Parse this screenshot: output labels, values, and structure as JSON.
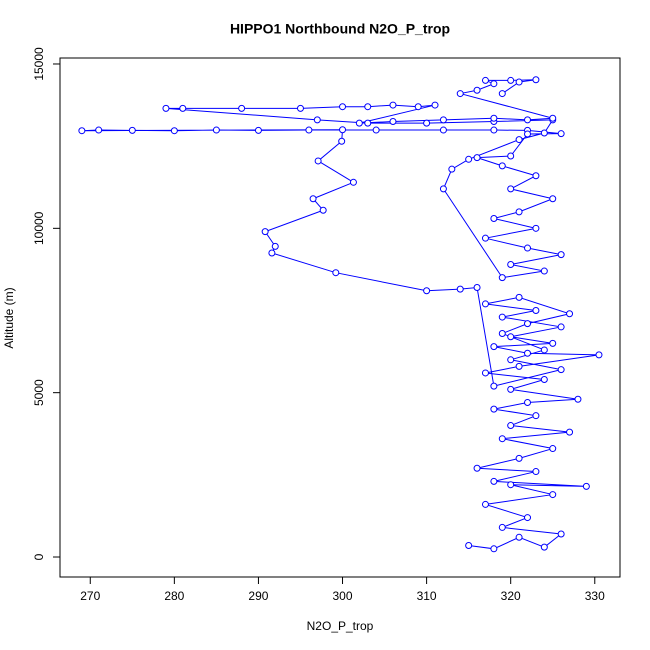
{
  "chart_data": {
    "type": "line",
    "title": "HIPPO1 Northbound N2O_P_trop",
    "x_label": "N2O_P_trop",
    "y_label": "Altitude (m)",
    "xlim": [
      266.4,
      333.0
    ],
    "ylim": [
      -608,
      15182
    ],
    "xticks": [
      270,
      280,
      290,
      300,
      310,
      320,
      330
    ],
    "yticks": [
      0,
      5000,
      10000,
      15000
    ],
    "color": "#0000ff",
    "markers": true,
    "x": [
      315,
      318,
      321,
      324,
      326,
      319,
      322,
      317,
      325,
      320,
      329,
      318,
      323,
      316,
      321,
      325,
      319,
      327,
      320,
      323,
      318,
      322,
      328,
      320,
      324,
      317,
      321,
      330.5,
      322,
      318,
      325,
      320,
      326,
      319,
      323,
      317,
      321,
      327,
      322,
      319,
      324,
      320,
      326,
      318,
      316,
      314,
      310,
      299.2,
      291.6,
      292,
      290.8,
      297.7,
      296.5,
      301.3,
      297.1,
      299.9,
      300,
      269,
      271,
      275,
      280,
      285,
      290,
      296,
      304,
      312,
      318,
      322,
      326,
      322,
      320,
      316,
      319,
      323,
      320,
      325,
      321,
      318,
      323,
      317,
      322,
      326,
      320,
      324,
      319,
      312,
      313,
      315,
      321,
      324,
      325,
      318,
      310,
      303,
      297,
      279,
      281,
      288,
      295,
      300,
      303,
      306,
      309,
      311,
      302,
      306,
      312,
      318,
      322,
      325,
      314,
      316,
      318,
      317,
      320,
      323,
      321,
      319
    ],
    "values": [
      350,
      250,
      600,
      300,
      700,
      900,
      1200,
      1600,
      1900,
      2200,
      2150,
      2300,
      2600,
      2700,
      3000,
      3300,
      3600,
      3800,
      4000,
      4300,
      4500,
      4700,
      4800,
      5100,
      5400,
      5600,
      5800,
      6150,
      6200,
      6400,
      6500,
      6700,
      7000,
      7300,
      7500,
      7700,
      7900,
      7400,
      7100,
      6800,
      6300,
      6000,
      5700,
      5200,
      8200,
      8150,
      8100,
      8650,
      9250,
      9450,
      9900,
      10550,
      10900,
      11400,
      12050,
      12650,
      13000,
      12970,
      12990,
      12980,
      12970,
      12990,
      12980,
      12990,
      12990,
      12990,
      12990,
      12980,
      12880,
      12870,
      12200,
      12150,
      11900,
      11600,
      11200,
      10900,
      10500,
      10300,
      10000,
      9700,
      9400,
      9200,
      8900,
      8700,
      8500,
      11200,
      11800,
      12100,
      12700,
      12900,
      13300,
      13250,
      13200,
      13200,
      13300,
      13650,
      13650,
      13650,
      13650,
      13700,
      13700,
      13750,
      13700,
      13750,
      13200,
      13250,
      13300,
      13350,
      13300,
      13350,
      14100,
      14200,
      14400,
      14500,
      14500,
      14520,
      14450,
      14100
    ]
  }
}
